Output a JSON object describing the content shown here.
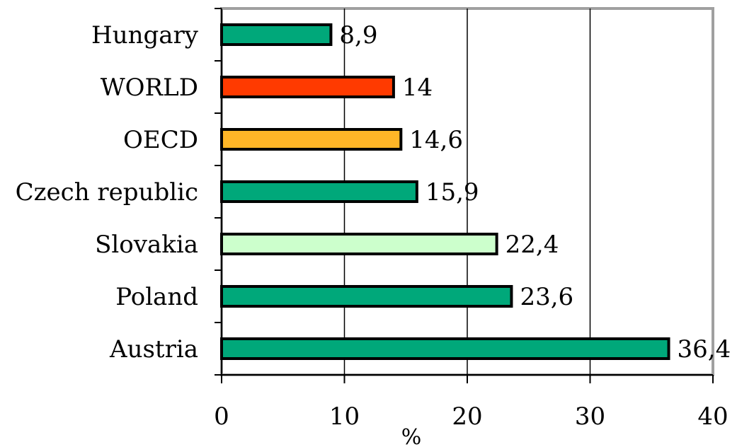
{
  "chart_data": {
    "type": "bar",
    "orientation": "horizontal",
    "categories": [
      "Hungary",
      "WORLD",
      "OECD",
      "Czech republic",
      "Slovakia",
      "Poland",
      "Austria"
    ],
    "values": [
      8.9,
      14,
      14.6,
      15.9,
      22.4,
      23.6,
      36.4
    ],
    "value_labels": [
      "8,9",
      "14",
      "14,6",
      "15,9",
      "22,4",
      "23,6",
      "36,4"
    ],
    "bar_colors": [
      "#00A87A",
      "#FF3A00",
      "#FFB627",
      "#00A87A",
      "#CCFFCC",
      "#00A87A",
      "#00A87A"
    ],
    "xlabel": "%",
    "xlim": [
      0,
      40
    ],
    "xticks": [
      0,
      10,
      20,
      30,
      40
    ],
    "xtick_labels": [
      "0",
      "10",
      "20",
      "30",
      "40"
    ],
    "grid": "vertical",
    "legend": "none"
  }
}
